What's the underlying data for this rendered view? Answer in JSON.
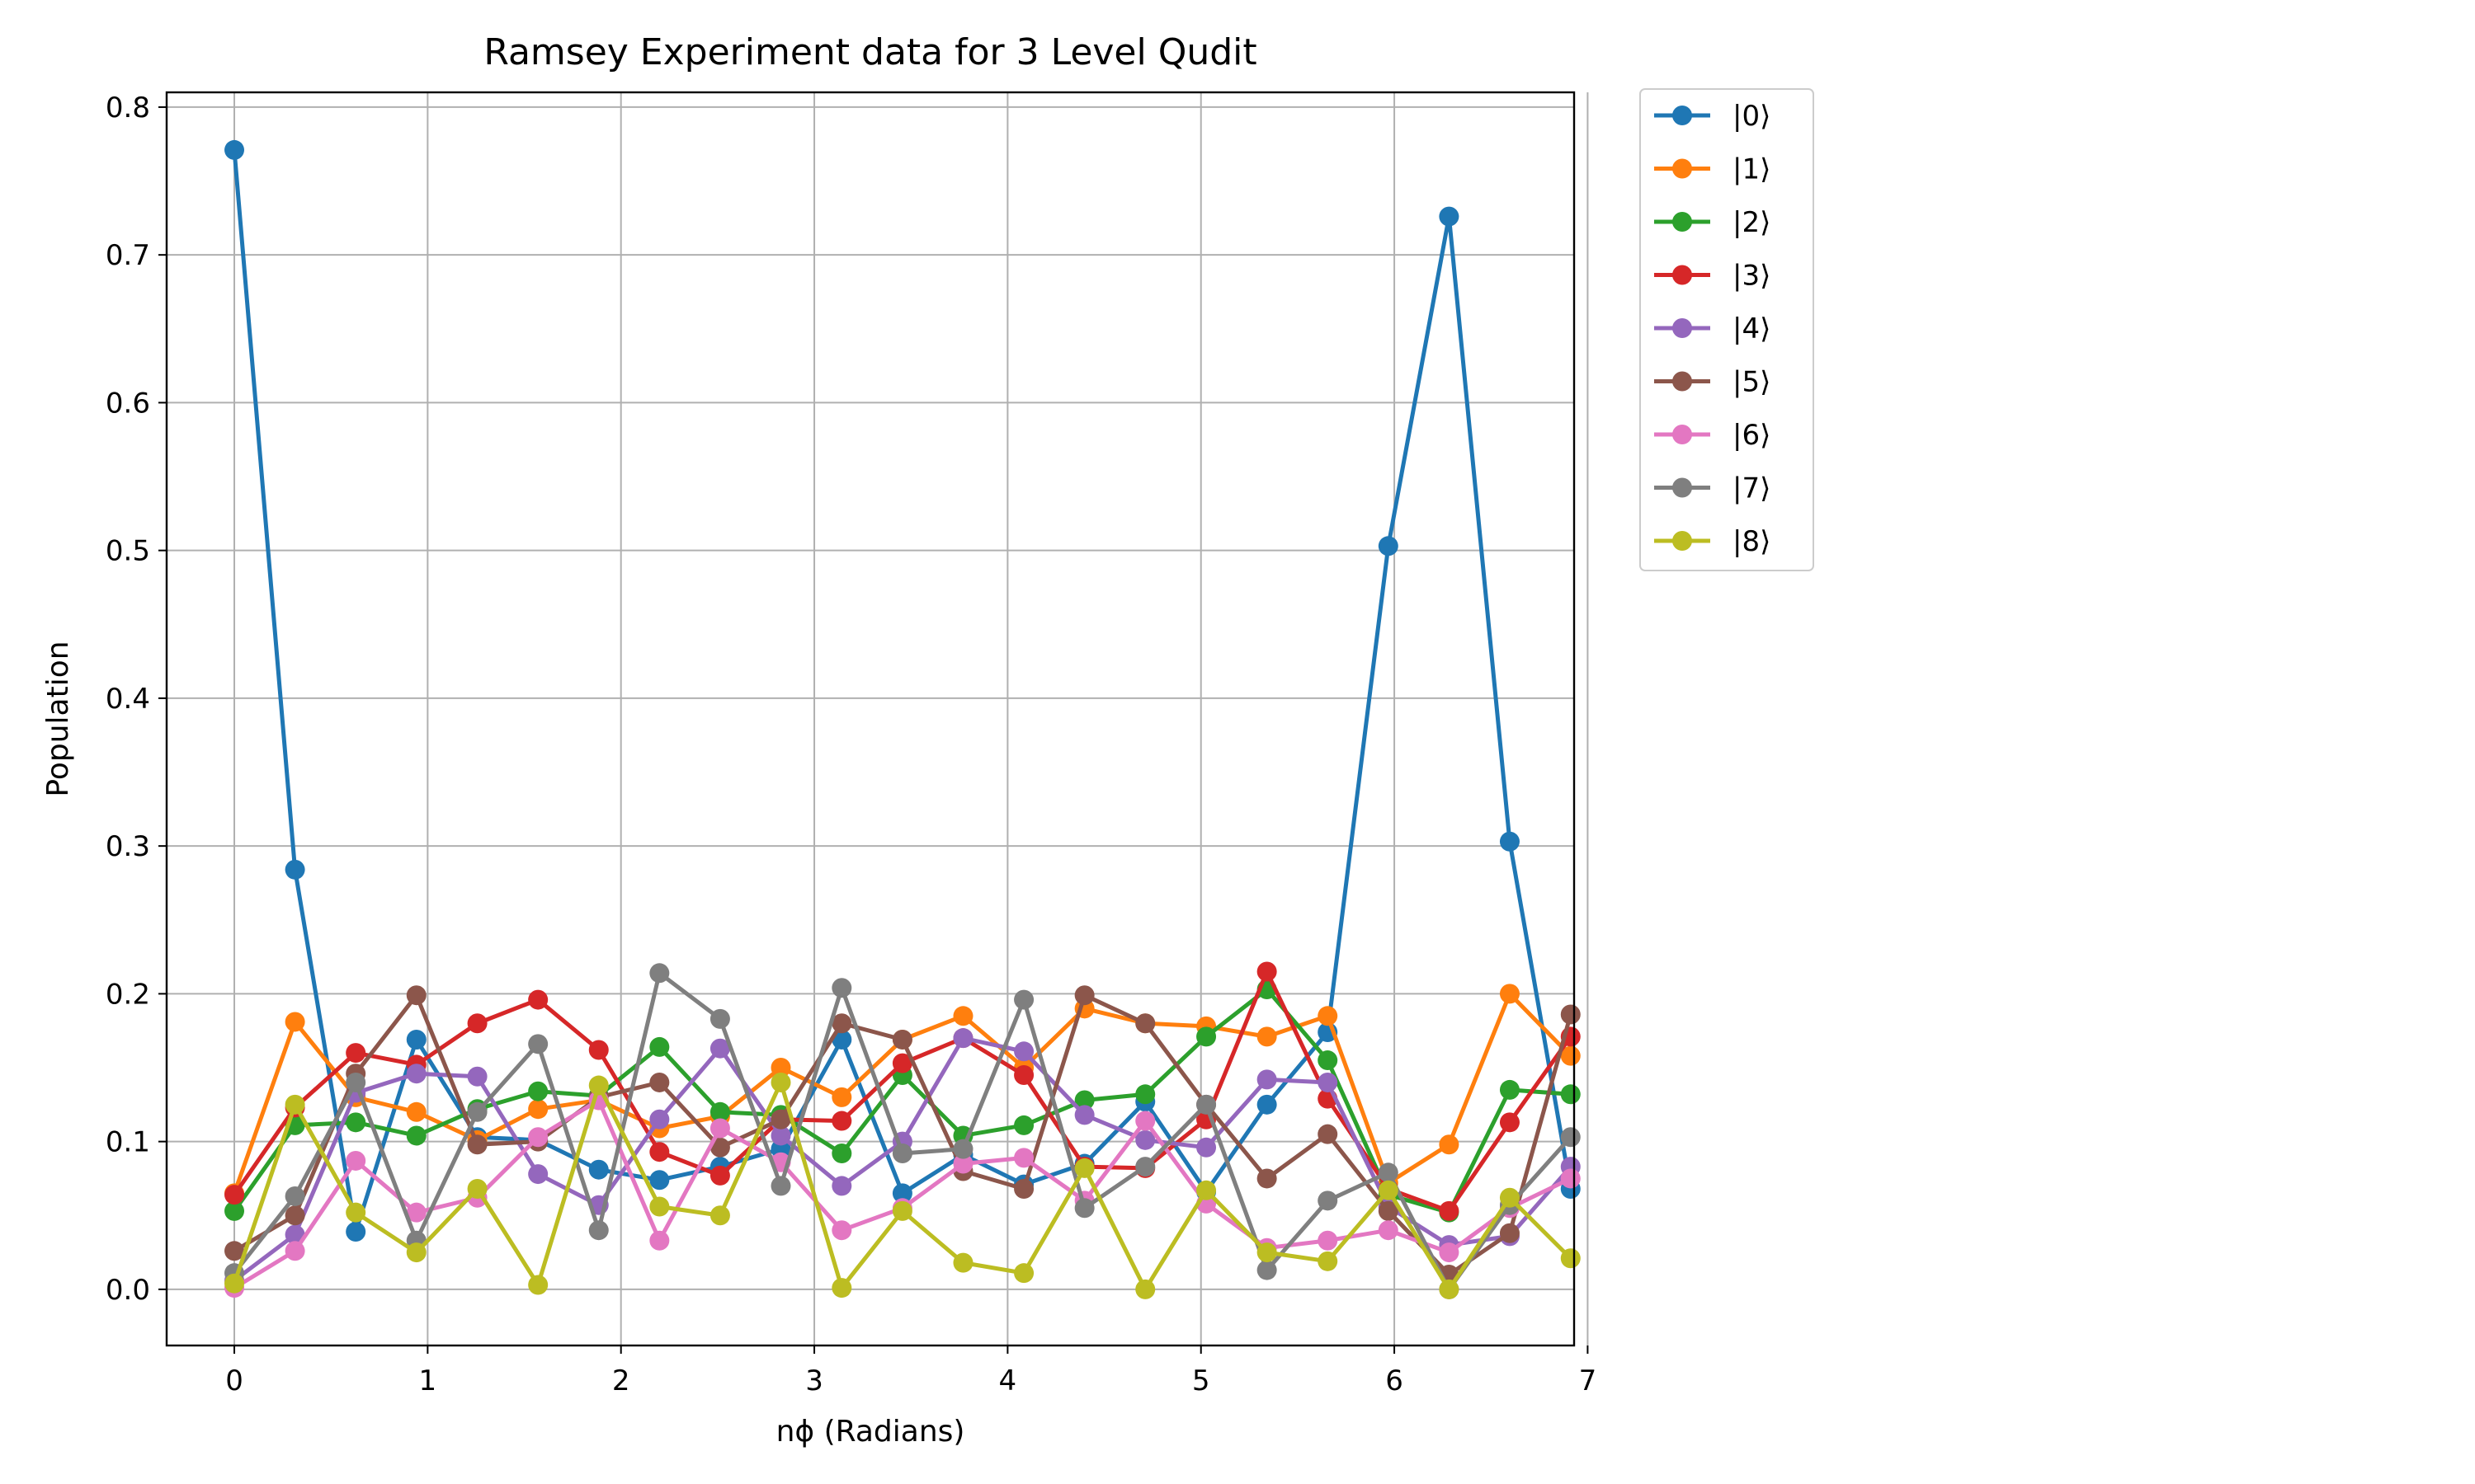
{
  "chart_data": {
    "type": "line",
    "title": "Ramsey Experiment data for 3 Level Qudit",
    "xlabel": "nϕ (Radians)",
    "ylabel": "Population",
    "xlim": [
      -0.35,
      6.93
    ],
    "ylim": [
      -0.038,
      0.81
    ],
    "xticks": [
      0,
      1,
      2,
      3,
      4,
      5,
      6,
      7
    ],
    "yticks": [
      0.0,
      0.1,
      0.2,
      0.3,
      0.4,
      0.5,
      0.6,
      0.7,
      0.8
    ],
    "ytick_labels": [
      "0.0",
      "0.1",
      "0.2",
      "0.3",
      "0.4",
      "0.5",
      "0.6",
      "0.7",
      "0.8"
    ],
    "grid": true,
    "legend_position": "outside-right-top",
    "x": [
      0,
      0.314,
      0.628,
      0.942,
      1.257,
      1.571,
      1.885,
      2.199,
      2.513,
      2.827,
      3.142,
      3.456,
      3.77,
      4.084,
      4.398,
      4.712,
      5.027,
      5.341,
      5.655,
      5.969,
      6.283,
      6.597,
      6.912
    ],
    "series": [
      {
        "name": "|0⟩",
        "color": "#1f77b4",
        "values": [
          0.771,
          0.284,
          0.039,
          0.169,
          0.103,
          0.101,
          0.081,
          0.074,
          0.083,
          0.095,
          0.169,
          0.065,
          0.091,
          0.071,
          0.085,
          0.127,
          0.066,
          0.125,
          0.174,
          0.503,
          0.726,
          0.303,
          0.068
        ]
      },
      {
        "name": "|1⟩",
        "color": "#ff7f0e",
        "values": [
          0.065,
          0.181,
          0.13,
          0.12,
          0.101,
          0.122,
          0.128,
          0.109,
          0.117,
          0.15,
          0.13,
          0.169,
          0.185,
          0.15,
          0.19,
          0.18,
          0.178,
          0.171,
          0.185,
          0.072,
          0.098,
          0.2,
          0.158
        ]
      },
      {
        "name": "|2⟩",
        "color": "#2ca02c",
        "values": [
          0.053,
          0.111,
          0.113,
          0.104,
          0.122,
          0.134,
          0.131,
          0.164,
          0.12,
          0.118,
          0.092,
          0.145,
          0.104,
          0.111,
          0.128,
          0.132,
          0.171,
          0.203,
          0.155,
          0.064,
          0.052,
          0.135,
          0.132
        ]
      },
      {
        "name": "|3⟩",
        "color": "#d62728",
        "values": [
          0.064,
          0.123,
          0.16,
          0.152,
          0.18,
          0.196,
          0.162,
          0.093,
          0.077,
          0.115,
          0.114,
          0.153,
          0.17,
          0.145,
          0.083,
          0.082,
          0.115,
          0.215,
          0.129,
          0.068,
          0.053,
          0.113,
          0.171
        ]
      },
      {
        "name": "|4⟩",
        "color": "#9467bd",
        "values": [
          0.006,
          0.037,
          0.133,
          0.146,
          0.144,
          0.078,
          0.057,
          0.115,
          0.163,
          0.104,
          0.07,
          0.1,
          0.17,
          0.161,
          0.118,
          0.101,
          0.096,
          0.142,
          0.14,
          0.056,
          0.03,
          0.036,
          0.083
        ]
      },
      {
        "name": "|5⟩",
        "color": "#8c564b",
        "values": [
          0.026,
          0.05,
          0.146,
          0.199,
          0.098,
          0.1,
          0.13,
          0.14,
          0.096,
          0.115,
          0.18,
          0.169,
          0.08,
          0.068,
          0.199,
          0.18,
          0.125,
          0.075,
          0.105,
          0.053,
          0.01,
          0.038,
          0.186
        ]
      },
      {
        "name": "|6⟩",
        "color": "#e377c2",
        "values": [
          0.001,
          0.026,
          0.087,
          0.052,
          0.062,
          0.103,
          0.128,
          0.033,
          0.109,
          0.086,
          0.04,
          0.055,
          0.085,
          0.089,
          0.06,
          0.114,
          0.058,
          0.028,
          0.033,
          0.04,
          0.025,
          0.055,
          0.075
        ]
      },
      {
        "name": "|7⟩",
        "color": "#7f7f7f",
        "values": [
          0.011,
          0.063,
          0.14,
          0.033,
          0.12,
          0.166,
          0.04,
          0.214,
          0.183,
          0.07,
          0.204,
          0.092,
          0.095,
          0.196,
          0.055,
          0.083,
          0.125,
          0.013,
          0.06,
          0.079,
          0.0,
          0.057,
          0.103
        ]
      },
      {
        "name": "|8⟩",
        "color": "#bcbd22",
        "values": [
          0.004,
          0.125,
          0.052,
          0.025,
          0.068,
          0.003,
          0.138,
          0.056,
          0.05,
          0.14,
          0.001,
          0.053,
          0.018,
          0.011,
          0.082,
          0.0,
          0.067,
          0.025,
          0.019,
          0.067,
          0.0,
          0.062,
          0.021
        ]
      }
    ]
  }
}
